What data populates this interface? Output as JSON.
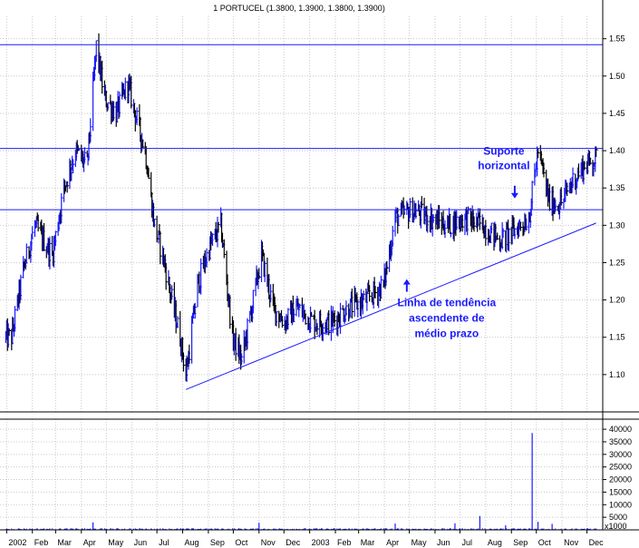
{
  "chart_data": [
    {
      "type": "ohlc",
      "title": "1 PORTUCEL (1.3800, 1.3900, 1.3800, 1.3900)",
      "ylim": [
        1.05,
        1.58
      ],
      "yticks": [
        1.1,
        1.15,
        1.2,
        1.25,
        1.3,
        1.35,
        1.4,
        1.45,
        1.5,
        1.55
      ],
      "grid": true,
      "colors": {
        "up": "#1a1aff",
        "down": "#000000",
        "lines": "#1a1aff",
        "grid": "#c8c8c8"
      },
      "horizontal_levels": [
        1.542,
        1.403,
        1.321
      ],
      "trendline": {
        "from": [
          "2002-08-05",
          1.08
        ],
        "to": [
          "2003-12-12",
          1.303
        ]
      },
      "price_path": [
        [
          "2002-01-07",
          1.15
        ],
        [
          "2002-01-21",
          1.24
        ],
        [
          "2002-02-04",
          1.3
        ],
        [
          "2002-02-25",
          1.26
        ],
        [
          "2002-03-11",
          1.35
        ],
        [
          "2002-03-25",
          1.4
        ],
        [
          "2002-04-08",
          1.38
        ],
        [
          "2002-04-19",
          1.54
        ],
        [
          "2002-04-29",
          1.47
        ],
        [
          "2002-05-13",
          1.45
        ],
        [
          "2002-05-27",
          1.49
        ],
        [
          "2002-06-07",
          1.44
        ],
        [
          "2002-06-17",
          1.4
        ],
        [
          "2002-06-28",
          1.3
        ],
        [
          "2002-07-08",
          1.26
        ],
        [
          "2002-07-19",
          1.2
        ],
        [
          "2002-07-29",
          1.15
        ],
        [
          "2002-08-05",
          1.1
        ],
        [
          "2002-08-19",
          1.22
        ],
        [
          "2002-09-02",
          1.27
        ],
        [
          "2002-09-16",
          1.3
        ],
        [
          "2002-09-30",
          1.15
        ],
        [
          "2002-10-11",
          1.12
        ],
        [
          "2002-10-25",
          1.2
        ],
        [
          "2002-11-04",
          1.26
        ],
        [
          "2002-11-18",
          1.19
        ],
        [
          "2002-12-02",
          1.17
        ],
        [
          "2002-12-16",
          1.19
        ],
        [
          "2003-01-06",
          1.17
        ],
        [
          "2003-01-27",
          1.17
        ],
        [
          "2003-02-17",
          1.19
        ],
        [
          "2003-03-10",
          1.2
        ],
        [
          "2003-03-31",
          1.22
        ],
        [
          "2003-04-14",
          1.31
        ],
        [
          "2003-05-05",
          1.32
        ],
        [
          "2003-05-26",
          1.31
        ],
        [
          "2003-06-16",
          1.3
        ],
        [
          "2003-07-07",
          1.31
        ],
        [
          "2003-07-28",
          1.3
        ],
        [
          "2003-08-18",
          1.28
        ],
        [
          "2003-09-01",
          1.29
        ],
        [
          "2003-09-22",
          1.31
        ],
        [
          "2003-10-03",
          1.4
        ],
        [
          "2003-10-17",
          1.33
        ],
        [
          "2003-10-31",
          1.33
        ],
        [
          "2003-11-14",
          1.36
        ],
        [
          "2003-11-28",
          1.38
        ],
        [
          "2003-12-12",
          1.39
        ]
      ],
      "x_axis": {
        "range": [
          "2001-12-24",
          "2003-12-20"
        ],
        "ticks": [
          {
            "date": "2002-01-01",
            "label": "2002"
          },
          {
            "date": "2002-02-01",
            "label": "Feb"
          },
          {
            "date": "2002-03-01",
            "label": "Mar"
          },
          {
            "date": "2002-04-01",
            "label": "Apr"
          },
          {
            "date": "2002-05-01",
            "label": "May"
          },
          {
            "date": "2002-06-01",
            "label": "Jun"
          },
          {
            "date": "2002-07-01",
            "label": "Jul"
          },
          {
            "date": "2002-08-01",
            "label": "Aug"
          },
          {
            "date": "2002-09-01",
            "label": "Sep"
          },
          {
            "date": "2002-10-01",
            "label": "Oct"
          },
          {
            "date": "2002-11-01",
            "label": "Nov"
          },
          {
            "date": "2002-12-01",
            "label": "Dec"
          },
          {
            "date": "2003-01-01",
            "label": "2003"
          },
          {
            "date": "2003-02-01",
            "label": "Feb"
          },
          {
            "date": "2003-03-01",
            "label": "Mar"
          },
          {
            "date": "2003-04-01",
            "label": "Apr"
          },
          {
            "date": "2003-05-01",
            "label": "May"
          },
          {
            "date": "2003-06-01",
            "label": "Jun"
          },
          {
            "date": "2003-07-01",
            "label": "Jul"
          },
          {
            "date": "2003-08-01",
            "label": "Aug"
          },
          {
            "date": "2003-09-01",
            "label": "Sep"
          },
          {
            "date": "2003-10-01",
            "label": "Oct"
          },
          {
            "date": "2003-11-01",
            "label": "Nov"
          },
          {
            "date": "2003-12-01",
            "label": "Dec"
          }
        ]
      },
      "annotations": [
        {
          "lines": [
            "Suporte",
            "horizontal"
          ],
          "points_to": [
            "2003-09-05",
            1.336
          ],
          "arrow": "down"
        },
        {
          "lines": [
            "Linha de tendência",
            "ascendente de",
            "médio prazo"
          ],
          "points_to": [
            "2003-04-28",
            1.228
          ],
          "arrow": "up"
        }
      ]
    },
    {
      "type": "bar",
      "ylim": [
        0,
        44000
      ],
      "yticks": [
        5000,
        10000,
        15000,
        20000,
        25000,
        30000,
        35000,
        40000
      ],
      "unit_label": "x1000",
      "grid": true,
      "base_volume": 400,
      "spikes": [
        [
          "2002-04-15",
          3000
        ],
        [
          "2002-11-01",
          2800
        ],
        [
          "2003-04-14",
          2500
        ],
        [
          "2003-06-25",
          2600
        ],
        [
          "2003-07-25",
          5500
        ],
        [
          "2003-08-25",
          1800
        ],
        [
          "2003-09-26",
          38500
        ],
        [
          "2003-10-03",
          3200
        ],
        [
          "2003-10-20",
          2400
        ]
      ]
    }
  ]
}
